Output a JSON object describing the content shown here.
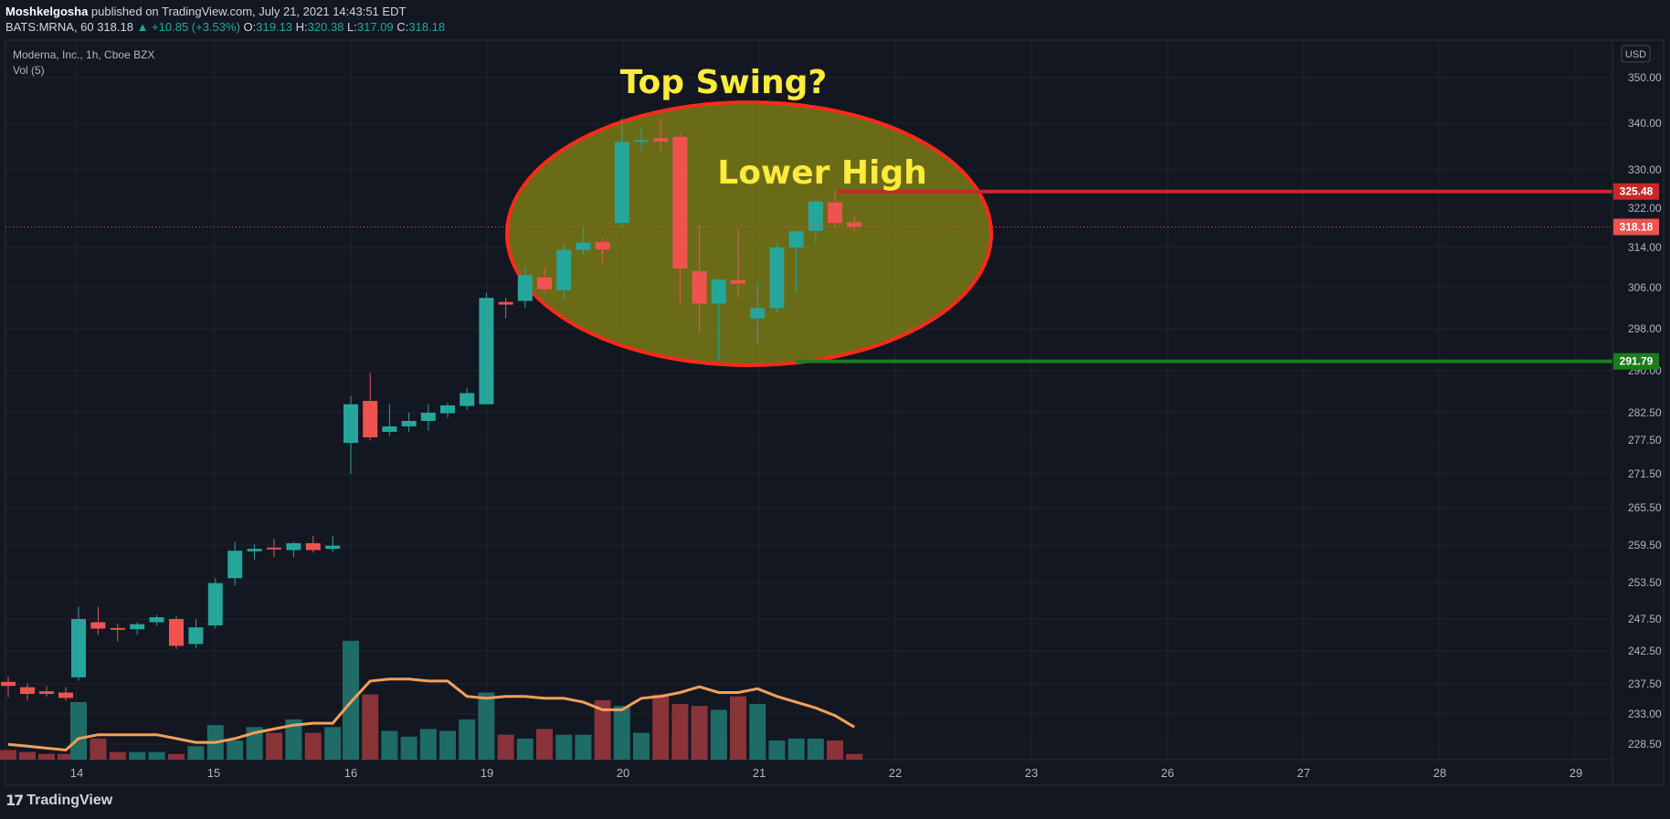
{
  "header": {
    "author": "Moshkelgosha",
    "published": "published on TradingView.com, July 21, 2021 14:43:51 EDT",
    "symbol": "BATS:MRNA, 60",
    "last": "318.18",
    "change": "▲ +10.85 (+3.53%)",
    "o_label": "O:",
    "o": "319.13",
    "h_label": "H:",
    "h": "320.38",
    "l_label": "L:",
    "l": "317.09",
    "c_label": "C:",
    "c": "318.18"
  },
  "legend": {
    "title": "Moderna, Inc., 1h, Cboe BZX",
    "volume": "Vol (5)"
  },
  "currency": "USD",
  "brand": "TradingView",
  "colors": {
    "background": "#131722",
    "up": "#26a69a",
    "down": "#ef5350",
    "vol_up": "#1f6b66",
    "vol_down": "#8a3338",
    "ma": "#f5a05a",
    "resistance": "#c62828",
    "support": "#1b7d1b",
    "annotation_text": "#ffeb3b",
    "ellipse_fill": "#8c8c14",
    "ellipse_stroke": "#ff2a1a"
  },
  "chart_data": {
    "type": "candlestick",
    "x_tick_labels": [
      "14",
      "15",
      "16",
      "19",
      "20",
      "21",
      "22",
      "23",
      "26",
      "27",
      "28",
      "29"
    ],
    "price_axis_labels": [
      "350.00",
      "340.00",
      "330.00",
      "322.00",
      "314.00",
      "306.00",
      "298.00",
      "290.00",
      "282.50",
      "277.50",
      "271.50",
      "265.50",
      "259.50",
      "253.50",
      "247.50",
      "242.50",
      "237.50",
      "233.00",
      "228.50"
    ],
    "last_price": 318.18,
    "resistance_level": 325.48,
    "support_level": 291.79,
    "annotations": [
      "Top Swing?",
      "Lower High"
    ],
    "candles": [
      {
        "o": 237.8,
        "h": 238.6,
        "l": 235.5,
        "c": 237.2
      },
      {
        "o": 237.0,
        "h": 237.6,
        "l": 235.0,
        "c": 236.0
      },
      {
        "o": 236.4,
        "h": 237.2,
        "l": 235.6,
        "c": 236.0
      },
      {
        "o": 236.2,
        "h": 237.0,
        "l": 235.0,
        "c": 235.4
      },
      {
        "o": 238.5,
        "h": 249.5,
        "l": 238.0,
        "c": 247.5
      },
      {
        "o": 247.0,
        "h": 249.5,
        "l": 245.0,
        "c": 246.0
      },
      {
        "o": 246.1,
        "h": 246.8,
        "l": 244.0,
        "c": 246.0
      },
      {
        "o": 245.9,
        "h": 247.0,
        "l": 245.0,
        "c": 246.7
      },
      {
        "o": 247.0,
        "h": 248.2,
        "l": 246.5,
        "c": 247.8
      },
      {
        "o": 247.5,
        "h": 248.0,
        "l": 242.8,
        "c": 243.3
      },
      {
        "o": 243.6,
        "h": 247.5,
        "l": 243.0,
        "c": 246.2
      },
      {
        "o": 246.5,
        "h": 254.2,
        "l": 246.0,
        "c": 253.4
      },
      {
        "o": 254.2,
        "h": 260.0,
        "l": 253.0,
        "c": 258.6
      },
      {
        "o": 258.5,
        "h": 259.6,
        "l": 257.2,
        "c": 258.9
      },
      {
        "o": 259.1,
        "h": 260.5,
        "l": 257.5,
        "c": 258.9
      },
      {
        "o": 258.7,
        "h": 260.0,
        "l": 257.6,
        "c": 259.8
      },
      {
        "o": 259.8,
        "h": 261.0,
        "l": 258.3,
        "c": 258.7
      },
      {
        "o": 258.9,
        "h": 261.0,
        "l": 258.4,
        "c": 259.4
      },
      {
        "o": 277.0,
        "h": 285.5,
        "l": 271.5,
        "c": 284.0
      },
      {
        "o": 284.6,
        "h": 289.6,
        "l": 277.5,
        "c": 278.0
      },
      {
        "o": 279.0,
        "h": 284.0,
        "l": 278.3,
        "c": 280.0
      },
      {
        "o": 280.0,
        "h": 282.5,
        "l": 279.0,
        "c": 281.0
      },
      {
        "o": 281.0,
        "h": 284.0,
        "l": 279.2,
        "c": 282.5
      },
      {
        "o": 282.4,
        "h": 284.2,
        "l": 281.6,
        "c": 283.8
      },
      {
        "o": 283.7,
        "h": 287.0,
        "l": 283.0,
        "c": 286.0
      },
      {
        "o": 284.0,
        "h": 305.0,
        "l": 284.0,
        "c": 304.0
      },
      {
        "o": 303.2,
        "h": 304.0,
        "l": 300.0,
        "c": 302.7
      },
      {
        "o": 303.4,
        "h": 310.0,
        "l": 302.0,
        "c": 308.5
      },
      {
        "o": 308.0,
        "h": 310.0,
        "l": 305.0,
        "c": 305.7
      },
      {
        "o": 305.5,
        "h": 314.8,
        "l": 303.6,
        "c": 313.5
      },
      {
        "o": 313.5,
        "h": 318.0,
        "l": 312.5,
        "c": 315.0
      },
      {
        "o": 315.1,
        "h": 316.0,
        "l": 311.0,
        "c": 313.6
      },
      {
        "o": 319.0,
        "h": 341.0,
        "l": 318.0,
        "c": 336.0
      },
      {
        "o": 336.0,
        "h": 339.0,
        "l": 334.0,
        "c": 336.4
      },
      {
        "o": 336.8,
        "h": 341.0,
        "l": 334.0,
        "c": 336.1
      },
      {
        "o": 337.1,
        "h": 338.0,
        "l": 302.5,
        "c": 309.8
      },
      {
        "o": 309.3,
        "h": 318.5,
        "l": 297.3,
        "c": 302.9
      },
      {
        "o": 302.9,
        "h": 307.7,
        "l": 292.0,
        "c": 307.6
      },
      {
        "o": 307.5,
        "h": 318.0,
        "l": 304.0,
        "c": 306.8
      },
      {
        "o": 300.0,
        "h": 307.0,
        "l": 295.0,
        "c": 302.0
      },
      {
        "o": 302.0,
        "h": 314.8,
        "l": 301.0,
        "c": 314.0
      },
      {
        "o": 314.0,
        "h": 317.4,
        "l": 305.0,
        "c": 317.3
      },
      {
        "o": 317.4,
        "h": 324.0,
        "l": 315.0,
        "c": 323.4
      },
      {
        "o": 323.2,
        "h": 325.6,
        "l": 317.8,
        "c": 319.0
      },
      {
        "o": 319.1,
        "h": 320.4,
        "l": 317.1,
        "c": 318.2
      }
    ]
  }
}
